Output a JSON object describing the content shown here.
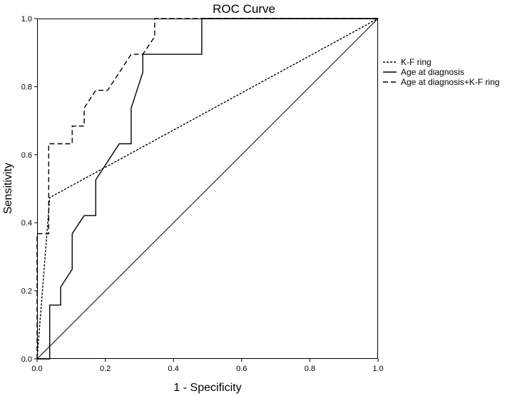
{
  "chart_data": {
    "type": "line",
    "title": "ROC Curve",
    "xlabel": "1 - Specificity",
    "ylabel": "Sensitivity",
    "xlim": [
      0,
      1
    ],
    "ylim": [
      0,
      1
    ],
    "xticks": [
      "0.0",
      "0.2",
      "0.4",
      "0.6",
      "0.8",
      "1.0"
    ],
    "yticks": [
      "0.0",
      "0.2",
      "0.4",
      "0.6",
      "0.8",
      "1.0"
    ],
    "grid": false,
    "legend_position": "right",
    "diagonal_reference": true,
    "series": [
      {
        "name": "K-F ring",
        "dash": "dotted",
        "color": "#000000",
        "x": [
          0,
          0.037,
          1
        ],
        "y": [
          0,
          0.474,
          1
        ]
      },
      {
        "name": "Age at diagnosis",
        "dash": "solid",
        "color": "#000000",
        "x": [
          0,
          0.037,
          0.037,
          0.069,
          0.069,
          0.103,
          0.103,
          0.138,
          0.138,
          0.172,
          0.172,
          0.241,
          0.276,
          0.276,
          0.31,
          0.31,
          0.483,
          0.483,
          1
        ],
        "y": [
          0,
          0,
          0.158,
          0.158,
          0.211,
          0.263,
          0.368,
          0.421,
          0.421,
          0.421,
          0.526,
          0.632,
          0.632,
          0.737,
          0.842,
          0.895,
          0.895,
          1,
          1
        ]
      },
      {
        "name": "Age at diagnosis+K-F ring",
        "dash": "dashed",
        "color": "#000000",
        "x": [
          0,
          0,
          0.034,
          0.034,
          0.034,
          0.103,
          0.103,
          0.138,
          0.138,
          0.172,
          0.172,
          0.207,
          0.276,
          0.31,
          0.345,
          0.345,
          1
        ],
        "y": [
          0,
          0.368,
          0.368,
          0.474,
          0.632,
          0.632,
          0.684,
          0.684,
          0.737,
          0.789,
          0.789,
          0.789,
          0.895,
          0.895,
          0.947,
          1,
          1
        ]
      }
    ]
  }
}
